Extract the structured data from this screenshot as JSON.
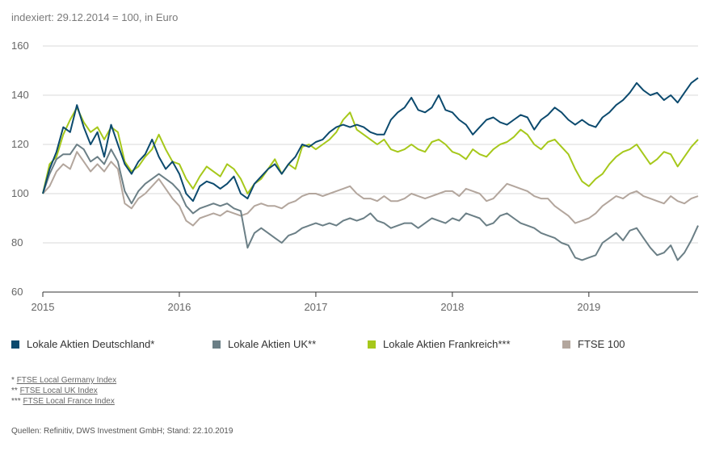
{
  "subtitle": "indexiert: 29.12.2014 = 100, in Euro",
  "legend": [
    {
      "label": "Lokale Aktien Deutschland*",
      "color": "#0c4a6e"
    },
    {
      "label": "Lokale Aktien UK**",
      "color": "#6b7f86"
    },
    {
      "label": "Lokale Aktien Frankreich***",
      "color": "#a6c81b"
    },
    {
      "label": "FTSE 100",
      "color": "#b3a69d"
    }
  ],
  "footnotes": [
    {
      "marker": "*",
      "text": "FTSE Local Germany Index"
    },
    {
      "marker": "**",
      "text": "FTSE Local UK Index"
    },
    {
      "marker": "***",
      "text": "FTSE Local France Index"
    }
  ],
  "source": "Quellen: Refinitiv, DWS Investment GmbH; Stand: 22.10.2019",
  "chart_data": {
    "type": "line",
    "title": "",
    "xlabel": "",
    "ylabel": "",
    "ylim": [
      60,
      160
    ],
    "xlim": [
      2015.0,
      2019.8
    ],
    "yticks": [
      "60",
      "80",
      "100",
      "120",
      "140",
      "160"
    ],
    "xticks": [
      {
        "v": 2015,
        "label": "2015"
      },
      {
        "v": 2016,
        "label": "2016"
      },
      {
        "v": 2017,
        "label": "2017"
      },
      {
        "v": 2018,
        "label": "2018"
      },
      {
        "v": 2019,
        "label": "2019"
      }
    ],
    "grid": "horizontal",
    "x": [
      2015.0,
      2015.05,
      2015.1,
      2015.15,
      2015.2,
      2015.25,
      2015.3,
      2015.35,
      2015.4,
      2015.45,
      2015.5,
      2015.55,
      2015.6,
      2015.65,
      2015.7,
      2015.75,
      2015.8,
      2015.85,
      2015.9,
      2015.95,
      2016.0,
      2016.05,
      2016.1,
      2016.15,
      2016.2,
      2016.25,
      2016.3,
      2016.35,
      2016.4,
      2016.45,
      2016.5,
      2016.55,
      2016.6,
      2016.65,
      2016.7,
      2016.75,
      2016.8,
      2016.85,
      2016.9,
      2016.95,
      2017.0,
      2017.05,
      2017.1,
      2017.15,
      2017.2,
      2017.25,
      2017.3,
      2017.35,
      2017.4,
      2017.45,
      2017.5,
      2017.55,
      2017.6,
      2017.65,
      2017.7,
      2017.75,
      2017.8,
      2017.85,
      2017.9,
      2017.95,
      2018.0,
      2018.05,
      2018.1,
      2018.15,
      2018.2,
      2018.25,
      2018.3,
      2018.35,
      2018.4,
      2018.45,
      2018.5,
      2018.55,
      2018.6,
      2018.65,
      2018.7,
      2018.75,
      2018.8,
      2018.85,
      2018.9,
      2018.95,
      2019.0,
      2019.05,
      2019.1,
      2019.15,
      2019.2,
      2019.25,
      2019.3,
      2019.35,
      2019.4,
      2019.45,
      2019.5,
      2019.55,
      2019.6,
      2019.65,
      2019.7,
      2019.75,
      2019.8
    ],
    "series": [
      {
        "name": "Lokale Aktien Deutschland*",
        "color": "#0c4a6e",
        "values": [
          100,
          110,
          117,
          127,
          125,
          136,
          127,
          120,
          125,
          115,
          128,
          120,
          112,
          108,
          113,
          116,
          122,
          115,
          110,
          113,
          108,
          100,
          97,
          103,
          105,
          104,
          102,
          104,
          107,
          100,
          98,
          104,
          107,
          110,
          112,
          108,
          112,
          115,
          120,
          119,
          121,
          122,
          125,
          127,
          128,
          127,
          128,
          127,
          125,
          124,
          124,
          130,
          133,
          135,
          139,
          134,
          133,
          135,
          140,
          134,
          133,
          130,
          128,
          124,
          127,
          130,
          131,
          129,
          128,
          130,
          132,
          131,
          126,
          130,
          132,
          135,
          133,
          130,
          128,
          130,
          128,
          127,
          131,
          133,
          136,
          138,
          141,
          145,
          142,
          140,
          141,
          138,
          140,
          137,
          141,
          145,
          147
        ]
      },
      {
        "name": "Lokale Aktien UK**",
        "color": "#6b7f86",
        "values": [
          100,
          108,
          114,
          116,
          116,
          120,
          118,
          113,
          115,
          112,
          118,
          113,
          101,
          96,
          101,
          104,
          106,
          108,
          106,
          104,
          101,
          95,
          92,
          94,
          95,
          96,
          95,
          96,
          94,
          93,
          78,
          84,
          86,
          84,
          82,
          80,
          83,
          84,
          86,
          87,
          88,
          87,
          88,
          87,
          89,
          90,
          89,
          90,
          92,
          89,
          88,
          86,
          87,
          88,
          88,
          86,
          88,
          90,
          89,
          88,
          90,
          89,
          92,
          91,
          90,
          87,
          88,
          91,
          92,
          90,
          88,
          87,
          86,
          84,
          83,
          82,
          80,
          79,
          74,
          73,
          74,
          75,
          80,
          82,
          84,
          81,
          85,
          86,
          82,
          78,
          75,
          76,
          79,
          73,
          76,
          81,
          87
        ]
      },
      {
        "name": "Lokale Aktien Frankreich***",
        "color": "#a6c81b",
        "values": [
          100,
          112,
          115,
          124,
          130,
          135,
          129,
          125,
          127,
          122,
          127,
          125,
          113,
          109,
          111,
          115,
          118,
          124,
          118,
          113,
          112,
          106,
          102,
          107,
          111,
          109,
          107,
          112,
          110,
          106,
          100,
          104,
          106,
          110,
          114,
          108,
          112,
          110,
          119,
          120,
          118,
          120,
          122,
          125,
          130,
          133,
          126,
          124,
          122,
          120,
          122,
          118,
          117,
          118,
          120,
          118,
          117,
          121,
          122,
          120,
          117,
          116,
          114,
          118,
          116,
          115,
          118,
          120,
          121,
          123,
          126,
          124,
          120,
          118,
          121,
          122,
          119,
          116,
          110,
          105,
          103,
          106,
          108,
          112,
          115,
          117,
          118,
          120,
          116,
          112,
          114,
          117,
          116,
          111,
          115,
          119,
          122
        ]
      },
      {
        "name": "FTSE 100",
        "color": "#b3a69d",
        "values": [
          100,
          103,
          109,
          112,
          110,
          117,
          113,
          109,
          112,
          109,
          113,
          110,
          96,
          94,
          98,
          100,
          103,
          106,
          102,
          98,
          95,
          89,
          87,
          90,
          91,
          92,
          91,
          93,
          92,
          91,
          92,
          95,
          96,
          95,
          95,
          94,
          96,
          97,
          99,
          100,
          100,
          99,
          100,
          101,
          102,
          103,
          100,
          98,
          98,
          97,
          99,
          97,
          97,
          98,
          100,
          99,
          98,
          99,
          100,
          101,
          101,
          99,
          102,
          101,
          100,
          97,
          98,
          101,
          104,
          103,
          102,
          101,
          99,
          98,
          98,
          95,
          93,
          91,
          88,
          89,
          90,
          92,
          95,
          97,
          99,
          98,
          100,
          101,
          99,
          98,
          97,
          96,
          99,
          97,
          96,
          98,
          99
        ]
      }
    ]
  }
}
